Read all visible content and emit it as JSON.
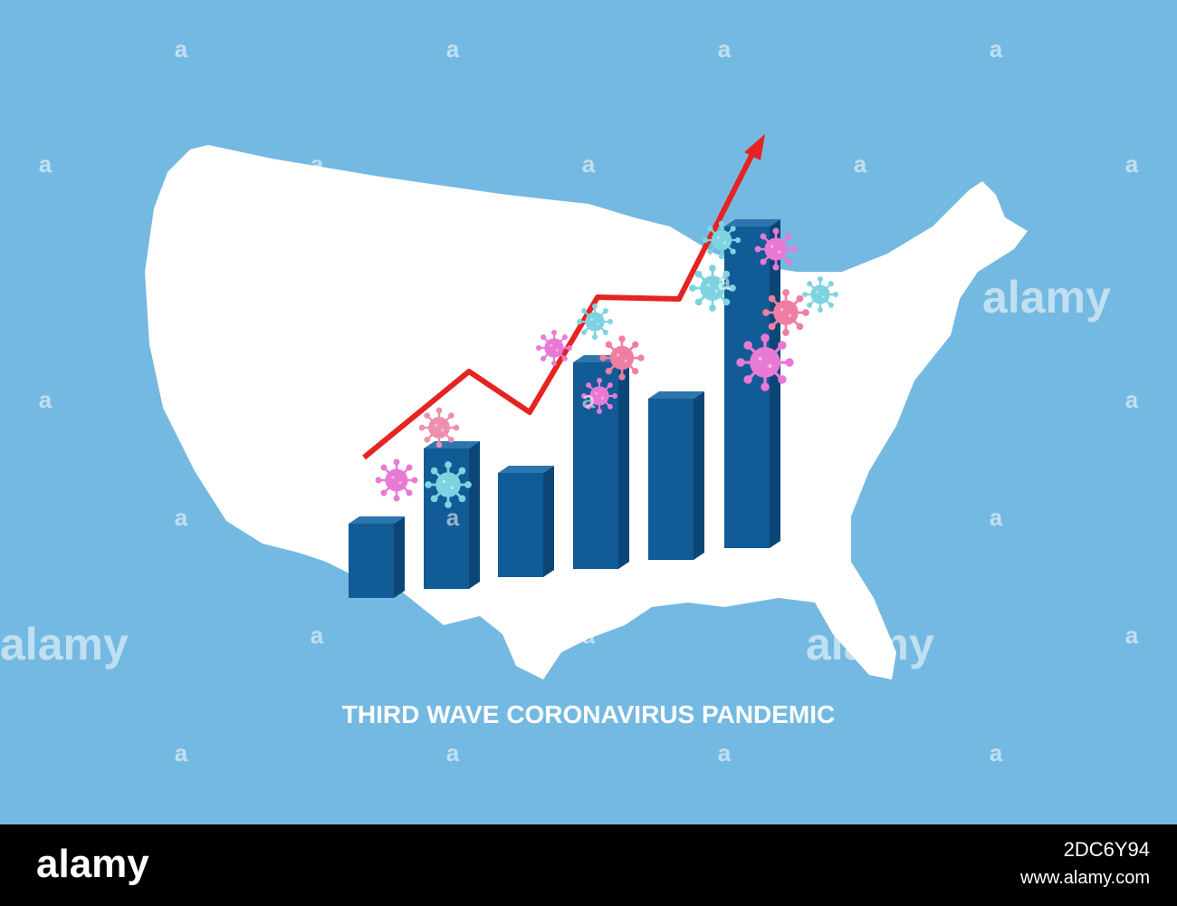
{
  "title": "THIRD WAVE CORONAVIRUS PANDEMIC",
  "watermark": {
    "logo": "alamy",
    "mark": "a"
  },
  "footer": {
    "brand": "alamy",
    "image_id": "2DC6Y94",
    "url": "www.alamy.com"
  }
}
